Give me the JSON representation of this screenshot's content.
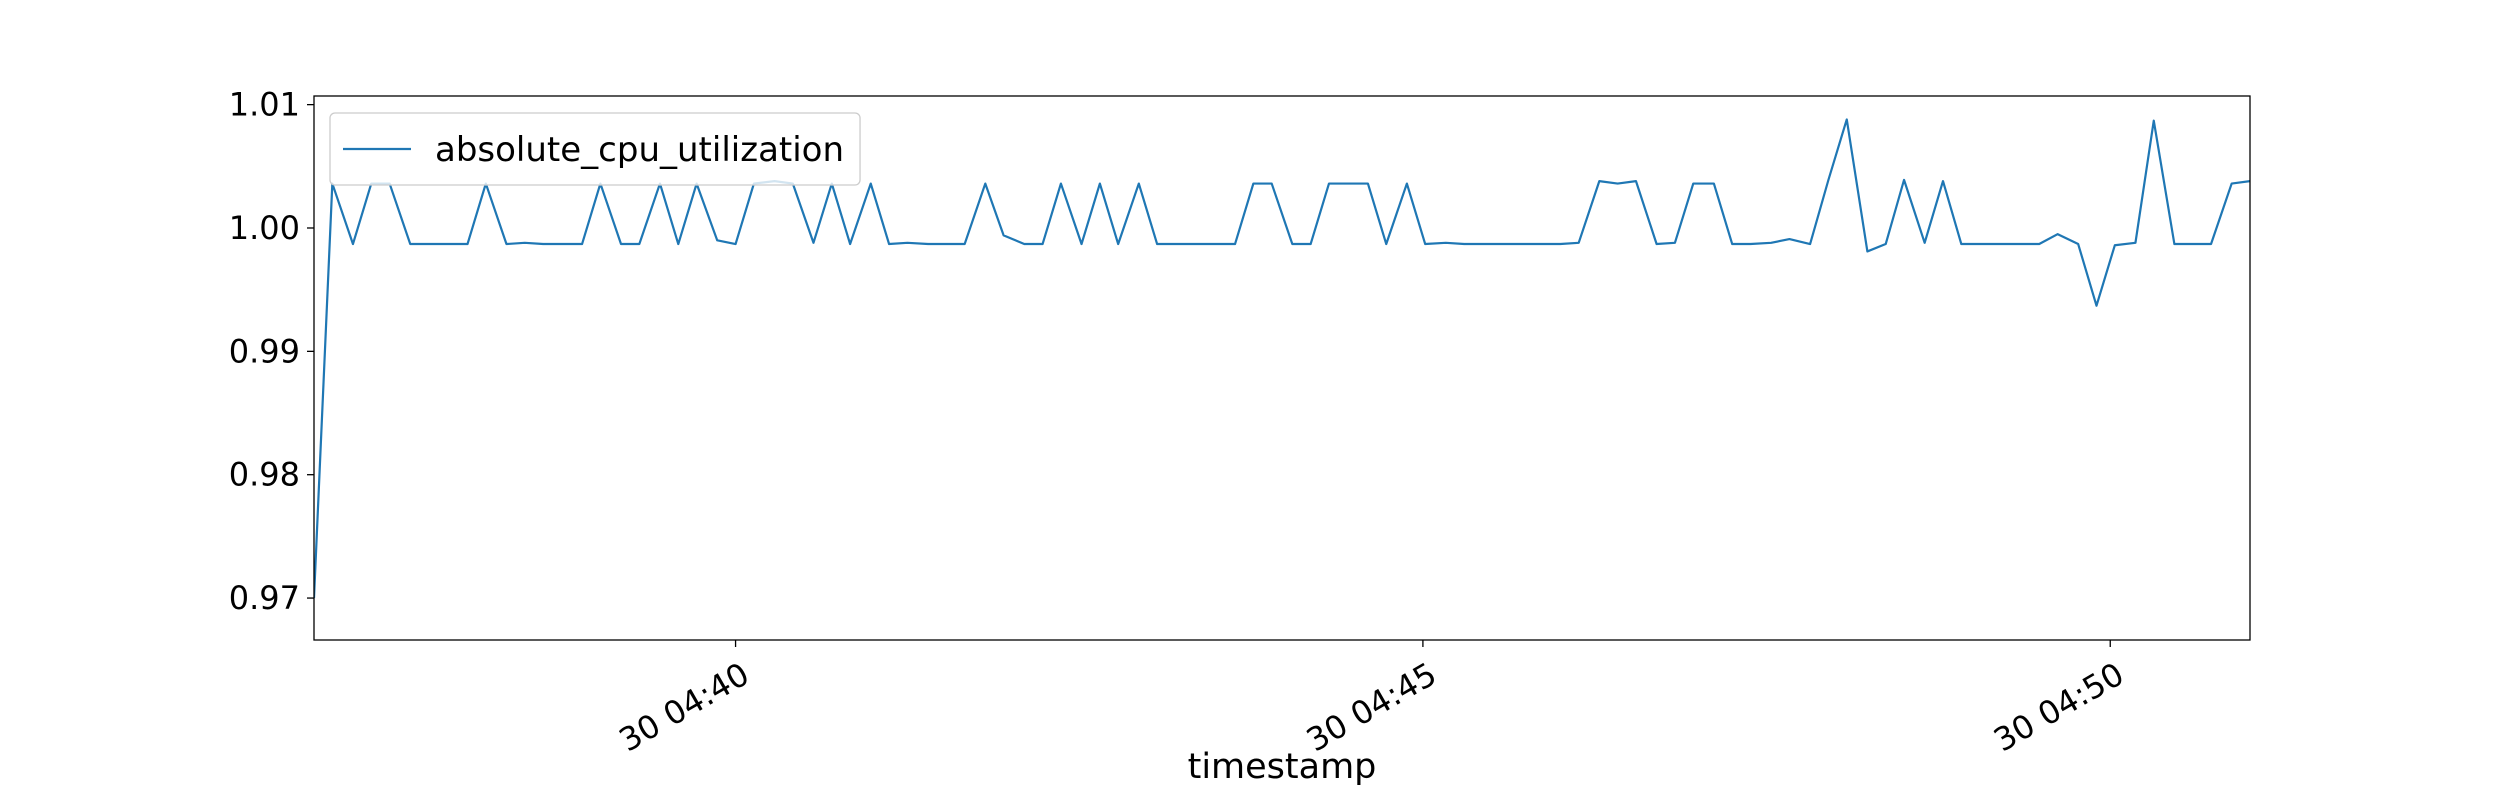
{
  "chart_data": {
    "type": "line",
    "x_label": "timestamp",
    "x": [
      "30 04:36:56",
      "30 04:37:04",
      "30 04:37:13",
      "30 04:37:21",
      "30 04:37:29",
      "30 04:37:38",
      "30 04:37:46",
      "30 04:37:55",
      "30 04:38:03",
      "30 04:38:11",
      "30 04:38:20",
      "30 04:38:28",
      "30 04:38:36",
      "30 04:38:45",
      "30 04:38:53",
      "30 04:39:01",
      "30 04:39:10",
      "30 04:39:18",
      "30 04:39:27",
      "30 04:39:35",
      "30 04:39:43",
      "30 04:39:52",
      "30 04:40:00",
      "30 04:40:08",
      "30 04:40:17",
      "30 04:40:25",
      "30 04:40:34",
      "30 04:40:42",
      "30 04:40:50",
      "30 04:40:59",
      "30 04:41:07",
      "30 04:41:15",
      "30 04:41:24",
      "30 04:41:32",
      "30 04:41:40",
      "30 04:41:49",
      "30 04:41:57",
      "30 04:42:06",
      "30 04:42:14",
      "30 04:42:22",
      "30 04:42:31",
      "30 04:42:39",
      "30 04:42:47",
      "30 04:42:56",
      "30 04:43:04",
      "30 04:43:12",
      "30 04:43:21",
      "30 04:43:29",
      "30 04:43:38",
      "30 04:43:46",
      "30 04:43:54",
      "30 04:44:03",
      "30 04:44:11",
      "30 04:44:19",
      "30 04:44:28",
      "30 04:44:36",
      "30 04:44:44",
      "30 04:44:53",
      "30 04:45:01",
      "30 04:45:10",
      "30 04:45:18",
      "30 04:45:26",
      "30 04:45:35",
      "30 04:45:43",
      "30 04:45:51",
      "30 04:46:00",
      "30 04:46:08",
      "30 04:46:17",
      "30 04:46:25",
      "30 04:46:33",
      "30 04:46:42",
      "30 04:46:50",
      "30 04:46:58",
      "30 04:47:07",
      "30 04:47:15",
      "30 04:47:23",
      "30 04:47:32",
      "30 04:47:40",
      "30 04:47:49",
      "30 04:47:57",
      "30 04:48:05",
      "30 04:48:14",
      "30 04:48:22",
      "30 04:48:30",
      "30 04:48:39",
      "30 04:48:47",
      "30 04:48:55",
      "30 04:49:04",
      "30 04:49:12",
      "30 04:49:21",
      "30 04:49:29",
      "30 04:49:37",
      "30 04:49:46",
      "30 04:49:54",
      "30 04:50:02",
      "30 04:50:11",
      "30 04:50:19",
      "30 04:50:28",
      "30 04:50:36",
      "30 04:50:44",
      "30 04:50:53",
      "30 04:51:01"
    ],
    "series": [
      {
        "name": "absolute_cpu_utilization",
        "color": "#1f77b4",
        "values": [
          0.97,
          1.0036,
          0.9987,
          1.0036,
          1.0036,
          0.9987,
          0.9987,
          0.9987,
          0.9987,
          1.0036,
          0.9987,
          0.9988,
          0.9987,
          0.9987,
          0.9987,
          1.0036,
          0.9987,
          0.9987,
          1.0036,
          0.9987,
          1.0036,
          0.999,
          0.9987,
          1.0036,
          1.0038,
          1.0036,
          0.9988,
          1.0036,
          0.9987,
          1.0036,
          0.9987,
          0.9988,
          0.9987,
          0.9987,
          0.9987,
          1.0036,
          0.9994,
          0.9987,
          0.9987,
          1.0036,
          0.9987,
          1.0036,
          0.9987,
          1.0036,
          0.9987,
          0.9987,
          0.9987,
          0.9987,
          0.9987,
          1.0036,
          1.0036,
          0.9987,
          0.9987,
          1.0036,
          1.0036,
          1.0036,
          0.9987,
          1.0036,
          0.9987,
          0.9988,
          0.9987,
          0.9987,
          0.9987,
          0.9987,
          0.9987,
          0.9987,
          0.9988,
          1.0038,
          1.0036,
          1.0038,
          0.9987,
          0.9988,
          1.0036,
          1.0036,
          0.9987,
          0.9987,
          0.9988,
          0.9991,
          0.9987,
          1.0039,
          1.0088,
          0.9981,
          0.9987,
          1.0039,
          0.9988,
          1.0038,
          0.9987,
          0.9987,
          0.9987,
          0.9987,
          0.9987,
          0.9995,
          0.9987,
          0.9937,
          0.9986,
          0.9988,
          1.0087,
          0.9987,
          0.9987,
          0.9987,
          1.0036,
          1.0038
        ]
      }
    ],
    "xlim": [
      "30 04:36:56",
      "30 04:51:01"
    ],
    "xticks": [
      "30 04:40",
      "30 04:45",
      "30 04:50"
    ],
    "ylim": [
      0.9666,
      1.0107
    ],
    "yticks": [
      0.97,
      0.98,
      0.99,
      {
        "value": 1,
        "label": "1.00"
      },
      1.01
    ],
    "grid": false,
    "legend": "upper left"
  }
}
